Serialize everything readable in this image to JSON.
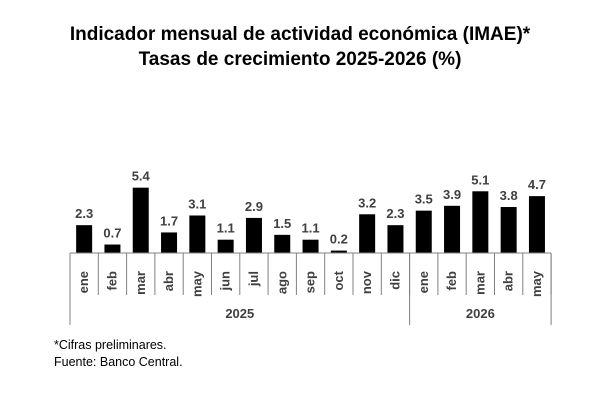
{
  "chart_data": {
    "type": "bar",
    "title": "Indicador mensual de actividad económica (IMAE)*",
    "subtitle": "Tasas de crecimiento 2025-2026 (%)",
    "categories": [
      "ene",
      "feb",
      "mar",
      "abr",
      "may",
      "jun",
      "jul",
      "ago",
      "sep",
      "oct",
      "nov",
      "dic",
      "ene",
      "feb",
      "mar",
      "abr",
      "may"
    ],
    "values": [
      2.3,
      0.7,
      5.4,
      1.7,
      3.1,
      1.1,
      2.9,
      1.5,
      1.1,
      0.2,
      3.2,
      2.3,
      3.5,
      3.9,
      5.1,
      3.8,
      4.7
    ],
    "value_labels": [
      "2.3",
      "0.7",
      "5.4",
      "1.7",
      "3.1",
      "1.1",
      "2.9",
      "1.5",
      "1.1",
      "0.2",
      "3.2",
      "2.3",
      "3.5",
      "3.9",
      "5.1",
      "3.8",
      "4.7"
    ],
    "groups": [
      {
        "label": "2025",
        "count": 12
      },
      {
        "label": "2026",
        "count": 5
      }
    ],
    "ylim": [
      0,
      6
    ],
    "bar_color": "#000000",
    "grid": false,
    "legend": "none"
  },
  "notes": {
    "line1": "*Cifras preliminares.",
    "line2": "Fuente: Banco Central."
  }
}
